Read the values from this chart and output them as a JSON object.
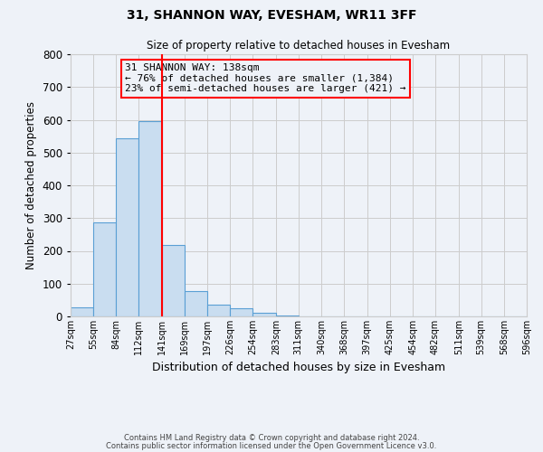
{
  "title": "31, SHANNON WAY, EVESHAM, WR11 3FF",
  "subtitle": "Size of property relative to detached houses in Evesham",
  "xlabel": "Distribution of detached houses by size in Evesham",
  "ylabel": "Number of detached properties",
  "bin_edges": [
    27,
    55,
    84,
    112,
    141,
    169,
    197,
    226,
    254,
    283,
    311,
    340,
    368,
    397,
    425,
    454,
    482,
    511,
    539,
    568,
    596
  ],
  "counts": [
    28,
    288,
    543,
    597,
    219,
    78,
    36,
    24,
    12,
    4,
    0,
    0,
    0,
    0,
    0,
    0,
    0,
    0,
    0,
    0
  ],
  "bar_facecolor": "#c9ddf0",
  "bar_edgecolor": "#5a9fd4",
  "vline_x": 141,
  "vline_color": "red",
  "ylim": [
    0,
    800
  ],
  "yticks": [
    0,
    100,
    200,
    300,
    400,
    500,
    600,
    700,
    800
  ],
  "annotation_text": "31 SHANNON WAY: 138sqm\n← 76% of detached houses are smaller (1,384)\n23% of semi-detached houses are larger (421) →",
  "annotation_box_edgecolor": "red",
  "footnote1": "Contains HM Land Registry data © Crown copyright and database right 2024.",
  "footnote2": "Contains public sector information licensed under the Open Government Licence v3.0.",
  "grid_color": "#cccccc",
  "background_color": "#eef2f8"
}
